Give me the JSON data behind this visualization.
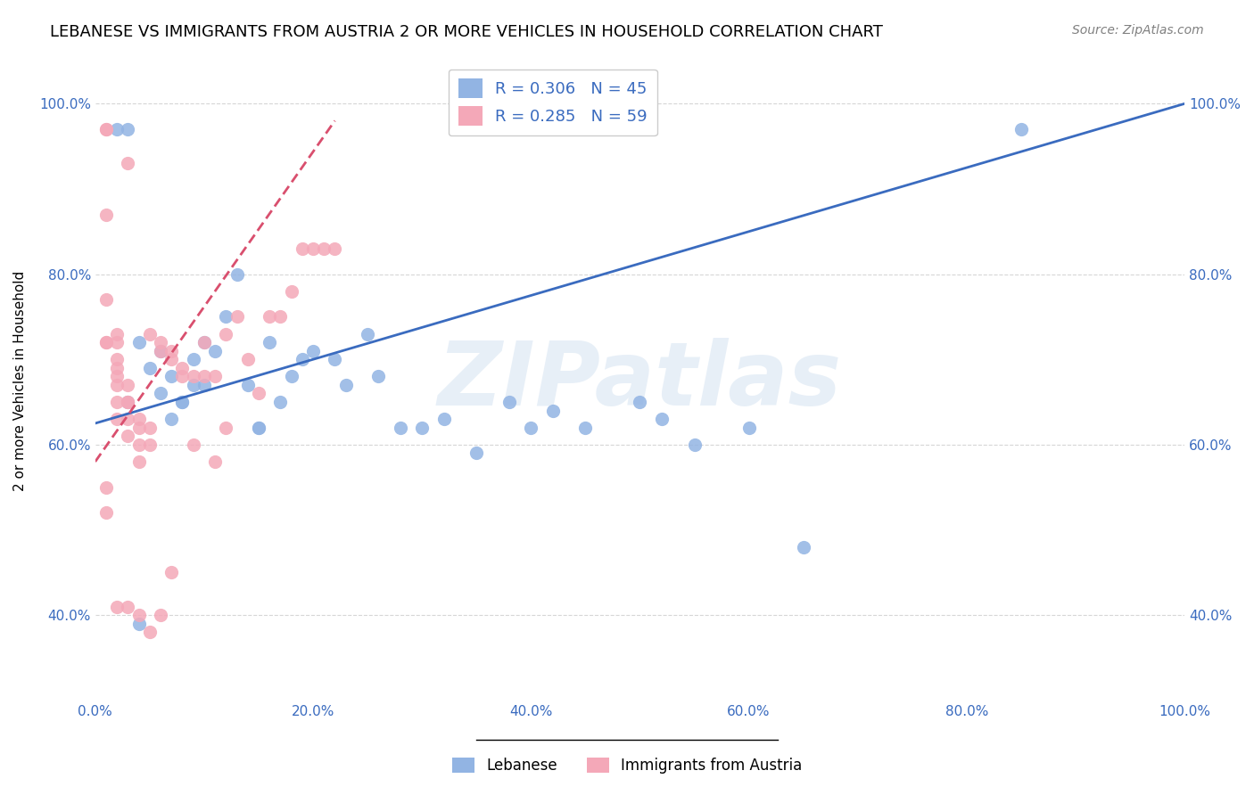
{
  "title": "LEBANESE VS IMMIGRANTS FROM AUSTRIA 2 OR MORE VEHICLES IN HOUSEHOLD CORRELATION CHART",
  "source": "Source: ZipAtlas.com",
  "xlabel": "",
  "ylabel": "2 or more Vehicles in Household",
  "xlim": [
    0,
    1.0
  ],
  "ylim": [
    0,
    1.0
  ],
  "xticks": [
    0.0,
    0.2,
    0.4,
    0.6,
    0.8,
    1.0
  ],
  "yticks": [
    0.4,
    0.6,
    0.8,
    1.0
  ],
  "xtick_labels": [
    "0.0%",
    "20.0%",
    "40.0%",
    "60.0%",
    "80.0%",
    "100.0%"
  ],
  "ytick_labels": [
    "40.0%",
    "60.0%",
    "80.0%",
    "100.0%"
  ],
  "legend_labels": [
    "Lebanese",
    "Immigrants from Austria"
  ],
  "r_blue": 0.306,
  "n_blue": 45,
  "r_pink": 0.285,
  "n_pink": 59,
  "blue_color": "#92b4e3",
  "pink_color": "#f4a8b8",
  "blue_line_color": "#3a6bbf",
  "pink_line_color": "#d94f6e",
  "watermark": "ZIPatlas",
  "blue_x": [
    0.02,
    0.03,
    0.03,
    0.04,
    0.05,
    0.06,
    0.06,
    0.07,
    0.07,
    0.08,
    0.08,
    0.09,
    0.09,
    0.1,
    0.1,
    0.11,
    0.12,
    0.13,
    0.14,
    0.15,
    0.15,
    0.16,
    0.17,
    0.18,
    0.19,
    0.2,
    0.22,
    0.23,
    0.25,
    0.26,
    0.28,
    0.3,
    0.32,
    0.35,
    0.38,
    0.4,
    0.42,
    0.45,
    0.5,
    0.52,
    0.55,
    0.6,
    0.65,
    0.85,
    0.04
  ],
  "blue_y": [
    0.97,
    0.97,
    0.65,
    0.72,
    0.69,
    0.71,
    0.66,
    0.68,
    0.63,
    0.65,
    0.65,
    0.67,
    0.7,
    0.67,
    0.72,
    0.71,
    0.75,
    0.8,
    0.67,
    0.62,
    0.62,
    0.72,
    0.65,
    0.68,
    0.7,
    0.71,
    0.7,
    0.67,
    0.73,
    0.68,
    0.62,
    0.62,
    0.63,
    0.59,
    0.65,
    0.62,
    0.64,
    0.62,
    0.65,
    0.63,
    0.6,
    0.62,
    0.48,
    0.97,
    0.39
  ],
  "pink_x": [
    0.01,
    0.01,
    0.01,
    0.01,
    0.01,
    0.01,
    0.02,
    0.02,
    0.02,
    0.02,
    0.02,
    0.02,
    0.02,
    0.02,
    0.03,
    0.03,
    0.03,
    0.03,
    0.03,
    0.04,
    0.04,
    0.04,
    0.04,
    0.05,
    0.05,
    0.05,
    0.06,
    0.06,
    0.07,
    0.07,
    0.08,
    0.08,
    0.09,
    0.09,
    0.1,
    0.1,
    0.11,
    0.11,
    0.12,
    0.12,
    0.13,
    0.14,
    0.15,
    0.16,
    0.17,
    0.18,
    0.19,
    0.2,
    0.21,
    0.22,
    0.01,
    0.01,
    0.02,
    0.03,
    0.04,
    0.05,
    0.06,
    0.07,
    0.03
  ],
  "pink_y": [
    0.97,
    0.97,
    0.87,
    0.77,
    0.72,
    0.72,
    0.73,
    0.72,
    0.7,
    0.69,
    0.68,
    0.67,
    0.65,
    0.63,
    0.67,
    0.65,
    0.65,
    0.63,
    0.61,
    0.63,
    0.62,
    0.6,
    0.58,
    0.73,
    0.62,
    0.6,
    0.72,
    0.71,
    0.71,
    0.7,
    0.68,
    0.69,
    0.68,
    0.6,
    0.72,
    0.68,
    0.68,
    0.58,
    0.73,
    0.62,
    0.75,
    0.7,
    0.66,
    0.75,
    0.75,
    0.78,
    0.83,
    0.83,
    0.83,
    0.83,
    0.55,
    0.52,
    0.41,
    0.41,
    0.4,
    0.38,
    0.4,
    0.45,
    0.93
  ]
}
